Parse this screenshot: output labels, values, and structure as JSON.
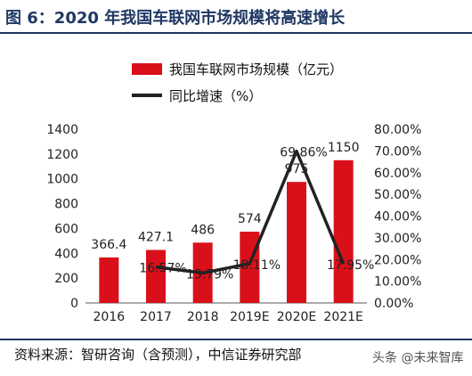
{
  "figure": {
    "title": "图 6：2020 年我国车联网市场规模将高速增长",
    "source": "资料来源：智研咨询（含预测），中信证券研究部",
    "watermark": "头条 @未来智库"
  },
  "colors": {
    "bar": "#d9101a",
    "line": "#222222",
    "title": "#1f3864"
  },
  "chart_data": {
    "type": "bar",
    "categories": [
      "2016",
      "2017",
      "2018",
      "2019E",
      "2020E",
      "2021E"
    ],
    "series": [
      {
        "name": "我国车联网市场规模（亿元）",
        "type": "bar",
        "axis": "left",
        "values": [
          366.4,
          427.1,
          486,
          574,
          975,
          1150
        ],
        "labels": [
          "366.4",
          "427.1",
          "486",
          "574",
          "975",
          "1150"
        ]
      },
      {
        "name": "同比增速（%）",
        "type": "line",
        "axis": "right",
        "values": [
          null,
          16.57,
          13.79,
          18.11,
          69.86,
          17.95
        ],
        "labels": [
          "",
          "16.57%",
          "13.79%",
          "18.11%",
          "69.86%",
          "17.95%"
        ]
      }
    ],
    "ylim_left": [
      0,
      1400
    ],
    "yticks_left": [
      "0",
      "200",
      "400",
      "600",
      "800",
      "1000",
      "1200",
      "1400"
    ],
    "ylim_right": [
      0,
      80
    ],
    "yticks_right": [
      "0.00%",
      "10.00%",
      "20.00%",
      "30.00%",
      "40.00%",
      "50.00%",
      "60.00%",
      "70.00%",
      "80.00%"
    ],
    "grid": false,
    "legend": "top-center"
  }
}
